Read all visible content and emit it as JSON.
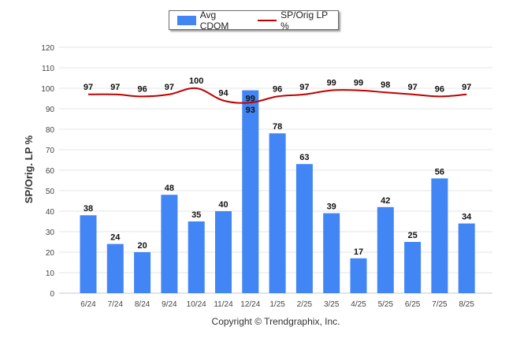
{
  "chart_data": {
    "type": "bar+line",
    "ylabel": "SP/Orig. LP %",
    "ylim": [
      0,
      120
    ],
    "yticks": [
      0,
      10,
      20,
      30,
      40,
      50,
      60,
      70,
      80,
      90,
      100,
      110,
      120
    ],
    "categories": [
      "6/24",
      "7/24",
      "8/24",
      "9/24",
      "10/24",
      "11/24",
      "12/24",
      "1/25",
      "2/25",
      "3/25",
      "4/25",
      "5/25",
      "6/25",
      "7/25",
      "8/25"
    ],
    "series": [
      {
        "name": "Avg CDOM",
        "type": "bar",
        "color": "#4285f4",
        "values": [
          38,
          24,
          20,
          48,
          35,
          40,
          99,
          78,
          63,
          39,
          17,
          42,
          25,
          56,
          34
        ]
      },
      {
        "name": "SP/Orig LP %",
        "type": "line",
        "color": "#c00000",
        "values": [
          97,
          97,
          96,
          97,
          100,
          94,
          93,
          96,
          97,
          99,
          99,
          98,
          97,
          96,
          97
        ]
      }
    ],
    "legend_position": "top",
    "grid": true
  },
  "footer": {
    "copyright": "Copyright © Trendgraphix, Inc."
  }
}
